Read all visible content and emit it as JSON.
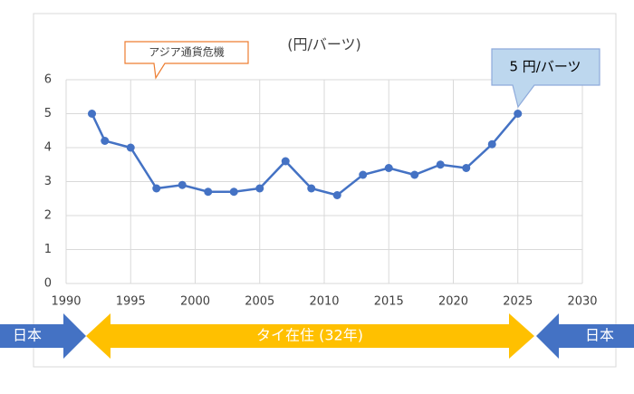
{
  "chart_data": {
    "type": "line",
    "title": "(円/バーツ)",
    "x": [
      1992,
      1993,
      1995,
      1997,
      1999,
      2001,
      2003,
      2005,
      2007,
      2009,
      2011,
      2013,
      2015,
      2017,
      2019,
      2021,
      2023,
      2025
    ],
    "series": [
      {
        "name": "円/バーツ",
        "color": "#4472c4",
        "values": [
          5.0,
          4.2,
          4.0,
          2.8,
          2.9,
          2.7,
          2.7,
          2.8,
          3.6,
          2.8,
          2.6,
          3.2,
          3.4,
          3.2,
          3.5,
          3.4,
          4.1,
          5.0
        ]
      }
    ],
    "xlim": [
      1990,
      2030
    ],
    "xticks": [
      1990,
      1995,
      2000,
      2005,
      2010,
      2015,
      2020,
      2025,
      2030
    ],
    "ylim": [
      0,
      6
    ],
    "yticks": [
      0,
      1,
      2,
      3,
      4,
      5,
      6
    ],
    "grid": true,
    "annotations": [
      "アジア通貨危機",
      "5 円/バーツ"
    ],
    "timeline": [
      "日本",
      "タイ在住 (32年)",
      "日本"
    ]
  }
}
